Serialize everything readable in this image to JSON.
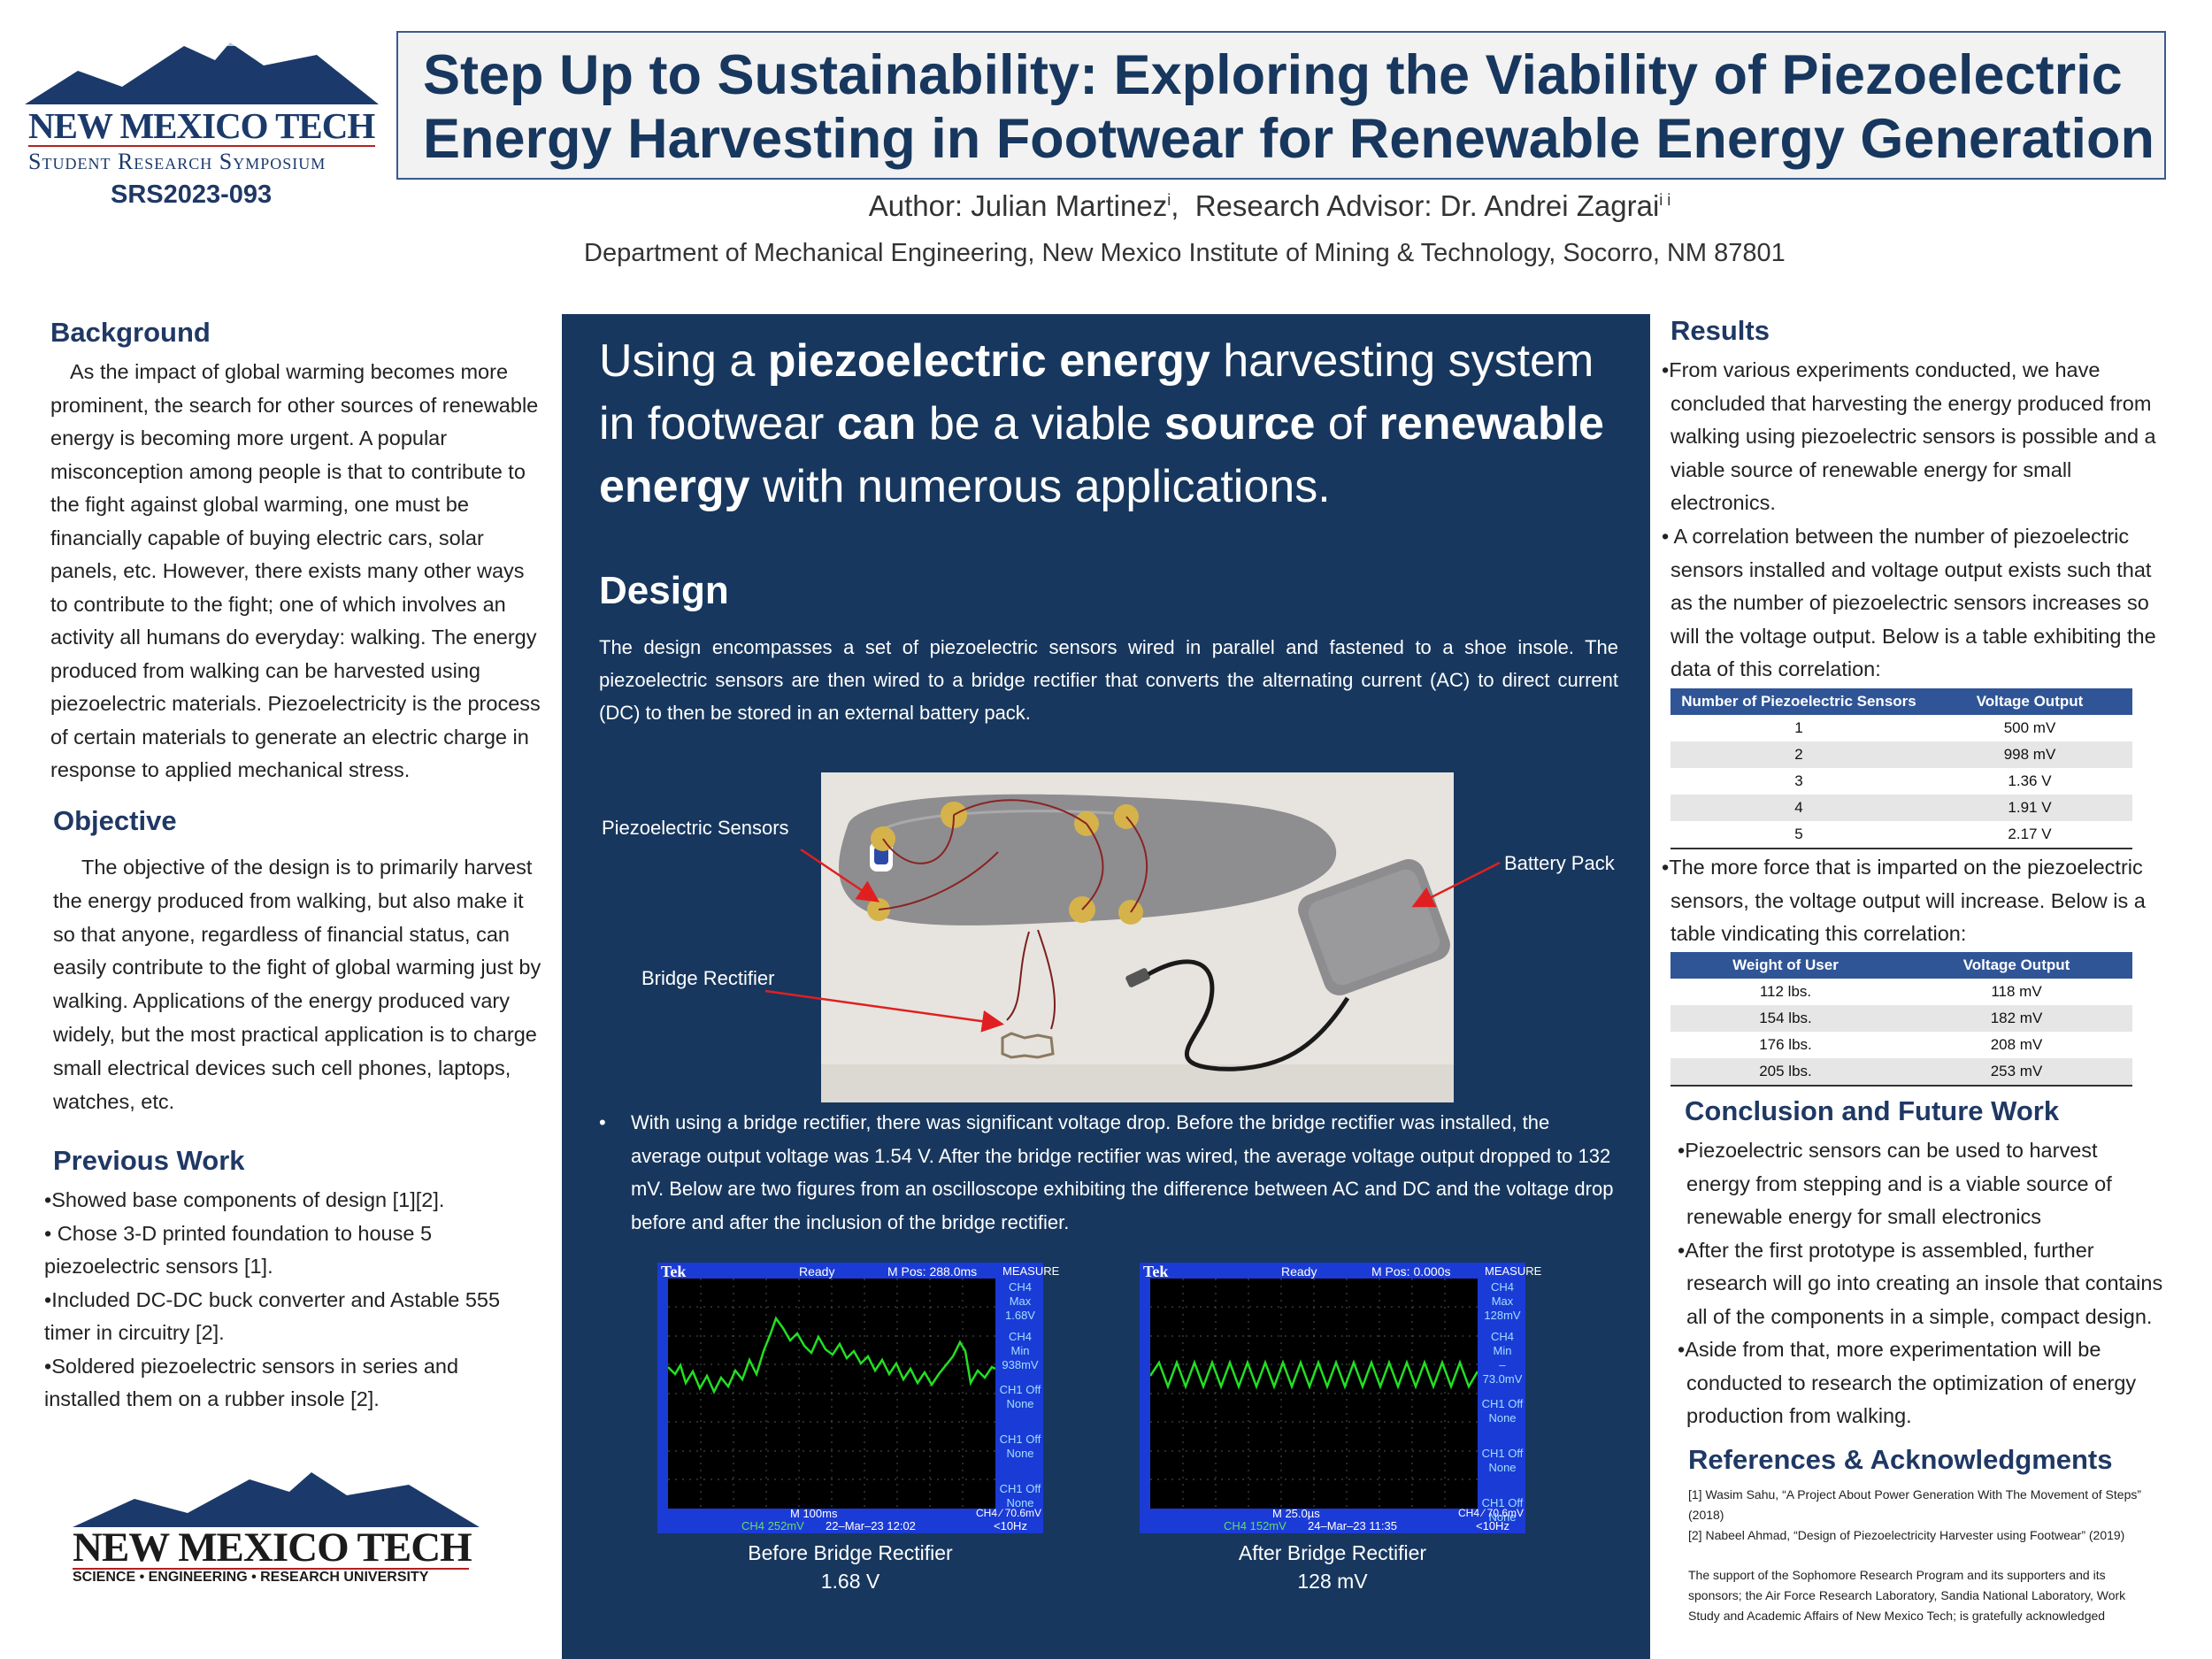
{
  "logo_top": {
    "name": "NEW MEXICO TECH",
    "subtitle": "Student Research Symposium"
  },
  "poster_id": "SRS2023-093",
  "title": {
    "line1": "Step Up to Sustainability: Exploring the Viability of Piezoelectric",
    "line2": "Energy Harvesting in Footwear for Renewable Energy Generation"
  },
  "authors": {
    "author": "Author: Julian Martinez",
    "author_sup": "i",
    "advisor": "Research Advisor: Dr. Andrei Zagrai",
    "advisor_sup": "i i"
  },
  "affiliation": "Department of Mechanical Engineering, New Mexico Institute of Mining & Technology, Socorro, NM 87801",
  "background": {
    "heading": "Background",
    "text": "As the impact of global warming becomes more prominent, the search for other sources of renewable energy is becoming more urgent. A popular misconception among people is that to contribute to the fight against global warming, one must be financially capable of buying electric cars, solar panels, etc. However, there exists many other ways to contribute to the fight; one of which involves an activity all humans do everyday: walking. The energy produced from walking can be harvested using piezoelectric materials. Piezoelectricity is the process of certain materials to generate an electric charge in response to applied mechanical stress."
  },
  "objective": {
    "heading": "Objective",
    "text": "The objective of the design is to primarily harvest the energy produced from walking, but also make it so that anyone, regardless of financial status, can easily contribute to the fight of global warming just by walking. Applications of the energy produced vary widely, but the most practical application is to charge small electrical devices such cell phones, laptops, watches, etc."
  },
  "previous_work": {
    "heading": "Previous Work",
    "items": [
      "•Showed base components of design [1][2].",
      "• Chose 3-D printed foundation to house 5 piezoelectric sensors [1].",
      "•Included DC-DC buck converter and Astable 555 timer in circuitry [2].",
      "•Soldered piezoelectric sensors in series and installed them on a rubber insole [2]."
    ]
  },
  "logo_bottom": {
    "name": "NEW MEXICO TECH",
    "tagline": "SCIENCE • ENGINEERING • RESEARCH UNIVERSITY"
  },
  "headline": {
    "p1": "Using a ",
    "b1": "piezoelectric energy",
    "p2": " harvesting system in footwear ",
    "b2": "can",
    "p3": " be a viable ",
    "b3": "source",
    "p4": " of ",
    "b4": "renewable energy",
    "p5": " with numerous applications."
  },
  "design": {
    "heading": "Design",
    "text": "The design encompasses a set of piezoelectric sensors wired in parallel and fastened to a shoe insole. The piezoelectric sensors are then wired to a bridge rectifier that converts the alternating current (AC) to direct current (DC) to then be stored in an external battery pack.",
    "labels": {
      "sensors": "Piezoelectric Sensors",
      "battery": "Battery Pack",
      "rectifier": "Bridge Rectifier"
    },
    "bullet": "With using a bridge rectifier, there was significant voltage drop. Before the bridge rectifier was installed, the average output voltage was 1.54 V. After the bridge rectifier was wired, the average voltage output dropped to 132 mV. Below are two figures from an oscilloscope exhibiting the difference between AC and DC and the voltage drop before and after the inclusion of the bridge rectifier."
  },
  "scope_before": {
    "brand": "Tek",
    "status": "Ready",
    "mpos": "M Pos: 288.0ms",
    "measure": "MEASURE",
    "panel": [
      [
        "CH4",
        "Max",
        "1.68V"
      ],
      [
        "CH4",
        "Min",
        "938mV"
      ],
      [
        "CH1 Off",
        "None"
      ],
      [
        "CH1 Off",
        "None"
      ],
      [
        "CH1 Off",
        "None"
      ]
    ],
    "bottom1": "M 100ms",
    "bottom2": "CH4 ⁄ 70.6mV",
    "bottom3": "CH4  252mV",
    "bottom4": "22–Mar–23 12:02",
    "bottom5": "<10Hz",
    "caption1": "Before Bridge Rectifier",
    "caption2": "1.68 V"
  },
  "scope_after": {
    "brand": "Tek",
    "status": "Ready",
    "mpos": "M Pos: 0.000s",
    "measure": "MEASURE",
    "panel": [
      [
        "CH4",
        "Max",
        "128mV"
      ],
      [
        "CH4",
        "Min",
        "–73.0mV"
      ],
      [
        "CH1 Off",
        "None"
      ],
      [
        "CH1 Off",
        "None"
      ],
      [
        "CH1 Off",
        "None"
      ]
    ],
    "bottom1": "M 25.0µs",
    "bottom2": "CH4 ⁄ 70.6mV",
    "bottom3": "CH4  152mV",
    "bottom4": "24–Mar–23 11:35",
    "bottom5": "<10Hz",
    "caption1": "After Bridge Rectifier",
    "caption2": "128 mV"
  },
  "results": {
    "heading": "Results",
    "p1": "•From various experiments conducted, we have concluded that harvesting the energy produced from walking using piezoelectric sensors is possible and a viable source of renewable energy for small electronics.",
    "p2": "• A correlation between the number of piezoelectric sensors installed and voltage output exists such that as the number of piezoelectric sensors increases so will the voltage output. Below is a table exhibiting the data of this correlation:",
    "table1": {
      "headers": [
        "Number of Piezoelectric Sensors",
        "Voltage Output"
      ],
      "rows": [
        [
          "1",
          "500 mV"
        ],
        [
          "2",
          "998 mV"
        ],
        [
          "3",
          "1.36 V"
        ],
        [
          "4",
          "1.91 V"
        ],
        [
          "5",
          "2.17 V"
        ]
      ]
    },
    "p3": "•The more force that is imparted on the piezoelectric sensors, the voltage output will increase. Below is a table vindicating this correlation:",
    "table2": {
      "headers": [
        "Weight of User",
        "Voltage Output"
      ],
      "rows": [
        [
          "112 lbs.",
          "118 mV"
        ],
        [
          "154 lbs.",
          "182 mV"
        ],
        [
          "176 lbs.",
          "208 mV"
        ],
        [
          "205 lbs.",
          "253 mV"
        ]
      ]
    }
  },
  "conclusion": {
    "heading": "Conclusion and Future Work",
    "items": [
      "•Piezoelectric sensors can be used to harvest energy from stepping and is a viable source of renewable energy for small electronics",
      "•After the first prototype is assembled, further research will go into creating an insole that contains all of the components in a simple, compact design.",
      "•Aside from that, more experimentation will be conducted to research the optimization of energy production from walking."
    ]
  },
  "references": {
    "heading": "References & Acknowledgments",
    "ref1": "[1] Wasim Sahu, “A Project About Power Generation With The Movement of Steps” (2018)",
    "ref2": "[2] Nabeel Ahmad, “Design of Piezoelectricity Harvester using Footwear” (2019)",
    "ack": "The support of the Sophomore Research Program and its supporters and its sponsors; the Air Force Research Laboratory, Sandia National Laboratory, Work Study and Academic Affairs of New Mexico Tech; is gratefully acknowledged"
  }
}
